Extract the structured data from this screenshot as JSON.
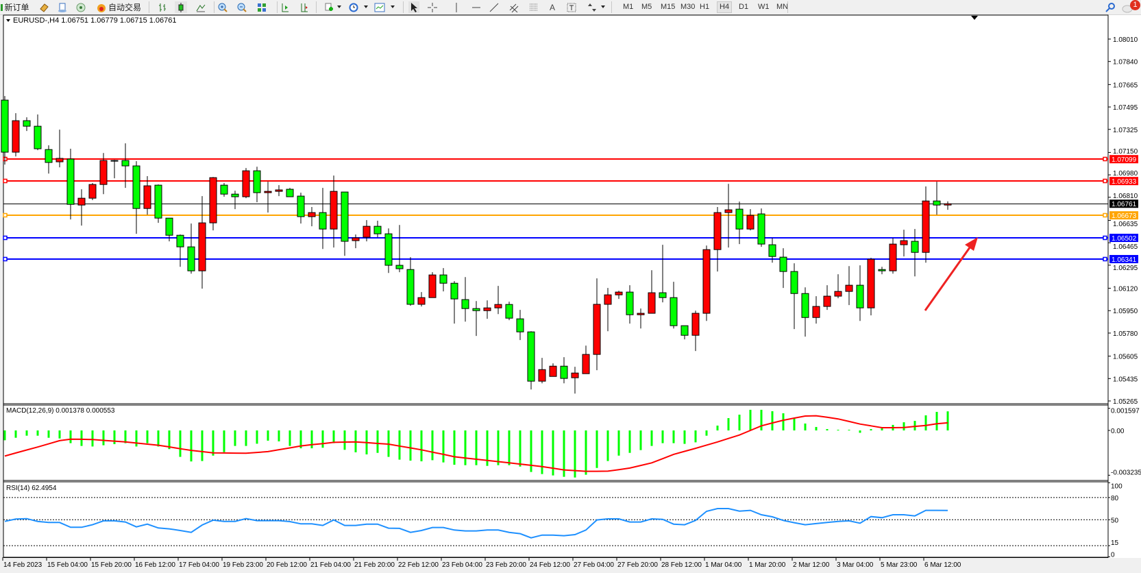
{
  "toolbar": {
    "new_order_label": "新订单",
    "auto_trading_label": "自动交易",
    "timeframes": [
      "M1",
      "M5",
      "M15",
      "M30",
      "H1",
      "H4",
      "D1",
      "W1",
      "MN"
    ],
    "active_timeframe": "H4",
    "notification_count": "1"
  },
  "chart": {
    "header": "EURUSD-,H4  1.06751 1.06779 1.06715 1.06761",
    "symbol": "EURUSD-",
    "timeframe": "H4",
    "bull_color": "#ff0000",
    "bear_color": "#00ff00",
    "price_ticks": [
      "1.08010",
      "1.07840",
      "1.07665",
      "1.07495",
      "1.07325",
      "1.07150",
      "1.06980",
      "1.06810",
      "1.06635",
      "1.06465",
      "1.06295",
      "1.06120",
      "1.05950",
      "1.05780",
      "1.05605",
      "1.05435",
      "1.05265"
    ],
    "bid_line": {
      "price": 1.06761,
      "label": "1.06761",
      "color": "#000000"
    },
    "horizontal_lines": [
      {
        "price": 1.07099,
        "label": "1.07099",
        "color": "#ff0000"
      },
      {
        "price": 1.06933,
        "label": "1.06933",
        "color": "#ff0000"
      },
      {
        "price": 1.06673,
        "label": "1.06673",
        "color": "#ffa500"
      },
      {
        "price": 1.06502,
        "label": "1.06502",
        "color": "#0000ff"
      },
      {
        "price": 1.06341,
        "label": "1.06341",
        "color": "#0000ff"
      }
    ],
    "arrow_annotation": {
      "color": "#ee2222",
      "points_to_price": 1.06502
    },
    "candles_ohlc": [
      [
        1.07547,
        1.07578,
        1.07058,
        1.07152
      ],
      [
        1.07152,
        1.07448,
        1.0712,
        1.07391
      ],
      [
        1.07391,
        1.07417,
        1.07313,
        1.07349
      ],
      [
        1.07349,
        1.07438,
        1.07167,
        1.07178
      ],
      [
        1.07172,
        1.07204,
        1.0699,
        1.07074
      ],
      [
        1.07079,
        1.07323,
        1.07037,
        1.07105
      ],
      [
        1.071,
        1.07178,
        1.06642,
        1.06756
      ],
      [
        1.06751,
        1.06871,
        1.06595,
        1.06803
      ],
      [
        1.06803,
        1.06918,
        1.06788,
        1.06907
      ],
      [
        1.06907,
        1.07146,
        1.06834,
        1.07089
      ],
      [
        1.07089,
        1.07094,
        1.06954,
        1.07087
      ],
      [
        1.07089,
        1.07219,
        1.06881,
        1.07048
      ],
      [
        1.07048,
        1.07084,
        1.06533,
        1.06725
      ],
      [
        1.06725,
        1.0697,
        1.06678,
        1.06897
      ],
      [
        1.06902,
        1.06907,
        1.06616,
        1.06652
      ],
      [
        1.06652,
        1.06652,
        1.06476,
        1.06522
      ],
      [
        1.06522,
        1.06528,
        1.06283,
        1.06434
      ],
      [
        1.06434,
        1.06611,
        1.06231,
        1.06252
      ],
      [
        1.06252,
        1.06819,
        1.06117,
        1.06616
      ],
      [
        1.06616,
        1.06964,
        1.06559,
        1.06959
      ],
      [
        1.06902,
        1.06918,
        1.06814,
        1.06834
      ],
      [
        1.06834,
        1.0686,
        1.0672,
        1.06814
      ],
      [
        1.06814,
        1.07032,
        1.06803,
        1.07011
      ],
      [
        1.07011,
        1.07042,
        1.06772,
        1.06845
      ],
      [
        1.06845,
        1.06928,
        1.06694,
        1.06855
      ],
      [
        1.06855,
        1.06902,
        1.06819,
        1.06866
      ],
      [
        1.06871,
        1.06881,
        1.06814,
        1.06814
      ],
      [
        1.06819,
        1.06845,
        1.06611,
        1.06663
      ],
      [
        1.06663,
        1.06736,
        1.0659,
        1.06694
      ],
      [
        1.06694,
        1.06881,
        1.06418,
        1.06569
      ],
      [
        1.06569,
        1.06975,
        1.06429,
        1.06855
      ],
      [
        1.0685,
        1.0685,
        1.06366,
        1.06476
      ],
      [
        1.06481,
        1.06528,
        1.06424,
        1.06502
      ],
      [
        1.06507,
        1.06637,
        1.06476,
        1.0659
      ],
      [
        1.0659,
        1.06632,
        1.06507,
        1.06533
      ],
      [
        1.06533,
        1.06574,
        1.06236,
        1.06294
      ],
      [
        1.06294,
        1.066,
        1.06242,
        1.06268
      ],
      [
        1.06262,
        1.06356,
        1.05987,
        1.05998
      ],
      [
        1.05998,
        1.06091,
        1.05982,
        1.06049
      ],
      [
        1.06049,
        1.06242,
        1.06049,
        1.06221
      ],
      [
        1.06221,
        1.06273,
        1.06096,
        1.06158
      ],
      [
        1.06158,
        1.06174,
        1.05852,
        1.06039
      ],
      [
        1.06034,
        1.06205,
        1.05867,
        1.05966
      ],
      [
        1.05966,
        1.06023,
        1.05758,
        1.0595
      ],
      [
        1.0595,
        1.06028,
        1.05888,
        1.05971
      ],
      [
        1.05971,
        1.06138,
        1.05924,
        1.05997
      ],
      [
        1.05997,
        1.06018,
        1.05878,
        1.05893
      ],
      [
        1.05888,
        1.05956,
        1.05727,
        1.05789
      ],
      [
        1.05789,
        1.05794,
        1.05352,
        1.05415
      ],
      [
        1.05415,
        1.05592,
        1.05399,
        1.05503
      ],
      [
        1.05451,
        1.0555,
        1.05451,
        1.05529
      ],
      [
        1.05529,
        1.05597,
        1.05399,
        1.05436
      ],
      [
        1.05441,
        1.05524,
        1.05321,
        1.05477
      ],
      [
        1.05472,
        1.05685,
        1.05472,
        1.05618
      ],
      [
        1.05618,
        1.06195,
        1.05498,
        1.05998
      ],
      [
        1.05998,
        1.06122,
        1.05794,
        1.0607
      ],
      [
        1.0607,
        1.06101,
        1.06039,
        1.06091
      ],
      [
        1.06091,
        1.06143,
        1.05852,
        1.05919
      ],
      [
        1.05919,
        1.05966,
        1.05815,
        1.0593
      ],
      [
        1.0593,
        1.06257,
        1.0593,
        1.06086
      ],
      [
        1.06086,
        1.0645,
        1.06013,
        1.06049
      ],
      [
        1.06049,
        1.06169,
        1.05815,
        1.05836
      ],
      [
        1.05836,
        1.05836,
        1.05732,
        1.05763
      ],
      [
        1.05763,
        1.0595,
        1.05644,
        1.0593
      ],
      [
        1.0593,
        1.06444,
        1.05872,
        1.06413
      ],
      [
        1.06413,
        1.06736,
        1.06247,
        1.06694
      ],
      [
        1.06694,
        1.06912,
        1.06429,
        1.06715
      ],
      [
        1.0672,
        1.06777,
        1.06455,
        1.06569
      ],
      [
        1.06569,
        1.0672,
        1.06559,
        1.06673
      ],
      [
        1.06684,
        1.06725,
        1.06434,
        1.06455
      ],
      [
        1.0645,
        1.06502,
        1.06314,
        1.06361
      ],
      [
        1.06356,
        1.06424,
        1.06122,
        1.06247
      ],
      [
        1.06247,
        1.06309,
        1.0581,
        1.0608
      ],
      [
        1.0608,
        1.06127,
        1.05753,
        1.05898
      ],
      [
        1.05898,
        1.0606,
        1.05852,
        1.05982
      ],
      [
        1.05982,
        1.06143,
        1.05956,
        1.0606
      ],
      [
        1.0606,
        1.06226,
        1.06044,
        1.06096
      ],
      [
        1.06096,
        1.06288,
        1.05992,
        1.06143
      ],
      [
        1.06143,
        1.06294,
        1.05872,
        1.05971
      ],
      [
        1.05971,
        1.06351,
        1.05914,
        1.0634
      ],
      [
        1.06262,
        1.06283,
        1.06226,
        1.06252
      ],
      [
        1.06252,
        1.06502,
        1.06231,
        1.06455
      ],
      [
        1.0645,
        1.06564,
        1.06361,
        1.06481
      ],
      [
        1.06476,
        1.06569,
        1.0621,
        1.06392
      ],
      [
        1.06392,
        1.06892,
        1.06314,
        1.06782
      ],
      [
        1.06782,
        1.06928,
        1.06678,
        1.06751
      ],
      [
        1.06751,
        1.06779,
        1.06715,
        1.06761
      ]
    ],
    "time_labels": [
      "14 Feb 2023",
      "15 Feb 04:00",
      "15 Feb 20:00",
      "16 Feb 12:00",
      "17 Feb 04:00",
      "19 Feb 23:00",
      "20 Feb 12:00",
      "21 Feb 04:00",
      "21 Feb 20:00",
      "22 Feb 12:00",
      "23 Feb 04:00",
      "23 Feb 20:00",
      "24 Feb 12:00",
      "27 Feb 04:00",
      "27 Feb 20:00",
      "28 Feb 12:00",
      "1 Mar 04:00",
      "1 Mar 20:00",
      "2 Mar 12:00",
      "3 Mar 04:00",
      "5 Mar 23:00",
      "6 Mar 12:00"
    ]
  },
  "macd": {
    "label": "MACD(12,26,9) 0.001378 0.000553",
    "axis_labels": [
      "0.001597",
      "0.00",
      "-0.003235"
    ],
    "ylim": [
      -0.003235,
      0.001597
    ],
    "histogram_color": "#00ff00",
    "signal_color": "#ff0000",
    "histogram": [
      -0.00071,
      -0.00053,
      -0.00038,
      -0.00038,
      -0.00053,
      -0.00058,
      -0.00092,
      -0.00112,
      -0.00116,
      -0.00107,
      -0.00099,
      -0.00092,
      -0.00116,
      -0.00092,
      -0.00116,
      -0.00135,
      -0.00191,
      -0.00224,
      -0.00221,
      -0.00182,
      -0.00157,
      -0.00112,
      -0.00112,
      -0.00096,
      -0.00074,
      -0.00079,
      -0.00112,
      -0.00129,
      -0.00129,
      -0.00125,
      -0.00092,
      -0.0014,
      -0.00158,
      -0.00173,
      -0.00162,
      -0.00191,
      -0.00211,
      -0.00218,
      -0.00223,
      -0.00215,
      -0.00231,
      -0.00248,
      -0.00251,
      -0.00251,
      -0.00256,
      -0.00251,
      -0.00251,
      -0.00261,
      -0.003,
      -0.00315,
      -0.00325,
      -0.00335,
      -0.0034,
      -0.0032,
      -0.00271,
      -0.00221,
      -0.00182,
      -0.00162,
      -0.00142,
      -0.00112,
      -0.00092,
      -0.00092,
      -0.00097,
      -0.00086,
      -0.00038,
      0.00035,
      0.00089,
      0.00114,
      0.00149,
      0.00149,
      0.00139,
      0.00124,
      0.00089,
      0.0005,
      0.00025,
      0.0001,
      5e-05,
      5e-05,
      -0.00017,
      0.0001,
      0.00015,
      0.0004,
      0.00059,
      0.00069,
      0.00109,
      0.00134,
      0.00138
    ],
    "signal": [
      -0.00185,
      -0.00163,
      -0.00141,
      -0.0012,
      -0.00097,
      -0.00074,
      -0.00063,
      -0.00064,
      -0.00066,
      -0.00072,
      -0.00077,
      -0.00083,
      -0.00091,
      -0.00099,
      -0.00107,
      -0.00119,
      -0.00132,
      -0.00144,
      -0.00153,
      -0.00162,
      -0.00163,
      -0.00164,
      -0.00165,
      -0.00159,
      -0.00153,
      -0.00139,
      -0.00126,
      -0.00112,
      -0.00103,
      -0.00095,
      -0.00086,
      -0.00084,
      -0.00083,
      -0.00088,
      -0.00094,
      -0.00099,
      -0.00113,
      -0.00126,
      -0.0014,
      -0.00157,
      -0.00173,
      -0.0019,
      -0.00199,
      -0.00208,
      -0.00217,
      -0.00225,
      -0.00234,
      -0.00243,
      -0.00252,
      -0.00261,
      -0.00273,
      -0.00285,
      -0.0029,
      -0.00295,
      -0.00295,
      -0.00294,
      -0.00283,
      -0.00272,
      -0.00253,
      -0.00234,
      -0.00204,
      -0.00173,
      -0.00151,
      -0.00129,
      -0.00106,
      -0.00083,
      -0.00058,
      -0.00033,
      0.0,
      0.00033,
      0.00054,
      0.00074,
      0.00089,
      0.00104,
      0.00106,
      0.00095,
      0.00083,
      0.00065,
      0.00046,
      0.00033,
      0.0002,
      0.0002,
      0.00021,
      0.00029,
      0.00036,
      0.00048,
      0.00055
    ]
  },
  "rsi": {
    "label": "RSI(14) 62.4954",
    "levels": [
      80,
      50,
      15
    ],
    "axis_labels": [
      "100",
      "80",
      "50",
      "15",
      "0"
    ],
    "line_color": "#1e90ff",
    "values": [
      47.8,
      50.9,
      51.5,
      47.8,
      46.3,
      46.3,
      39.8,
      39.8,
      43.2,
      48.5,
      48.5,
      46.9,
      40.4,
      44.1,
      38.9,
      37.7,
      35.5,
      33.0,
      42.9,
      49.4,
      47.8,
      47.8,
      51.5,
      48.8,
      48.8,
      48.8,
      47.5,
      44.4,
      44.4,
      42.3,
      49.7,
      42.3,
      42.3,
      44.1,
      44.1,
      38.6,
      38.3,
      33.0,
      35.5,
      39.5,
      39.5,
      36.1,
      34.9,
      34.9,
      36.1,
      36.1,
      33.0,
      31.2,
      25.6,
      29.3,
      29.3,
      28.4,
      29.9,
      36.1,
      49.7,
      51.2,
      51.2,
      46.9,
      46.9,
      51.2,
      50.6,
      44.1,
      43.2,
      49.1,
      61.4,
      65.1,
      65.1,
      61.7,
      62.7,
      56.8,
      54.0,
      49.1,
      46.0,
      43.2,
      44.8,
      46.3,
      47.8,
      48.5,
      45.4,
      54.3,
      52.8,
      56.8,
      56.8,
      55.2,
      62.7,
      62.7,
      62.5
    ]
  }
}
